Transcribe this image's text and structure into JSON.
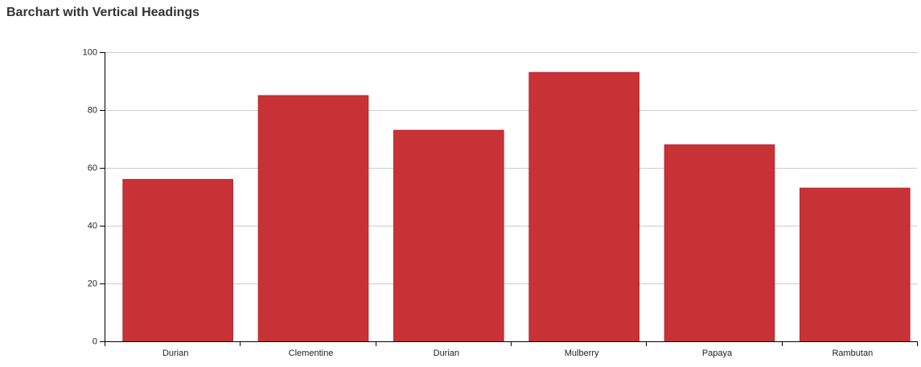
{
  "chart_data": {
    "type": "bar",
    "title": "Barchart with Vertical Headings",
    "xlabel": "",
    "ylabel": "",
    "categories": [
      "Durian",
      "Clementine",
      "Durian",
      "Mulberry",
      "Papaya",
      "Rambutan"
    ],
    "values": [
      56,
      85,
      73,
      93,
      68,
      53
    ],
    "ylim": [
      0,
      100
    ],
    "yticks": [
      0,
      20,
      40,
      60,
      80,
      100
    ],
    "grid": true,
    "legend": "none"
  },
  "colors": {
    "bar": "#c83236",
    "bar_stroke": "#b52a2e",
    "grid": "#cccccc",
    "axis": "#000000",
    "text": "#222222",
    "title": "#333333"
  }
}
